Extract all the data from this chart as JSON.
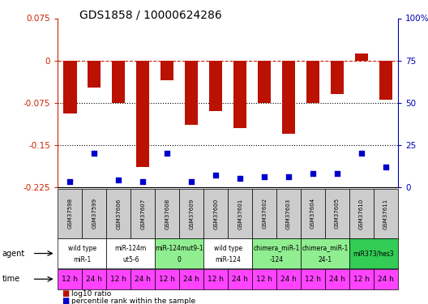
{
  "title": "GDS1858 / 10000624286",
  "samples": [
    "GSM37598",
    "GSM37599",
    "GSM37606",
    "GSM37607",
    "GSM37608",
    "GSM37609",
    "GSM37600",
    "GSM37601",
    "GSM37602",
    "GSM37603",
    "GSM37604",
    "GSM37605",
    "GSM37610",
    "GSM37611"
  ],
  "log10_ratio": [
    -0.095,
    -0.048,
    -0.075,
    -0.19,
    -0.035,
    -0.115,
    -0.09,
    -0.12,
    -0.075,
    -0.13,
    -0.075,
    -0.06,
    0.012,
    -0.07
  ],
  "percentile_rank": [
    3,
    20,
    4,
    3,
    20,
    3,
    7,
    5,
    6,
    6,
    8,
    8,
    20,
    12
  ],
  "ylim_left": [
    -0.225,
    0.075
  ],
  "ylim_right": [
    0,
    100
  ],
  "yticks_left": [
    0.075,
    0,
    -0.075,
    -0.15,
    -0.225
  ],
  "yticks_right": [
    100,
    75,
    50,
    25,
    0
  ],
  "agent_groups": [
    {
      "label": "wild type\nmiR-1",
      "start": 0,
      "end": 2,
      "color": "#ffffff"
    },
    {
      "label": "miR-124m\nut5-6",
      "start": 2,
      "end": 4,
      "color": "#ffffff"
    },
    {
      "label": "miR-124mut9-1\n0",
      "start": 4,
      "end": 6,
      "color": "#90ee90"
    },
    {
      "label": "wild type\nmiR-124",
      "start": 6,
      "end": 8,
      "color": "#ffffff"
    },
    {
      "label": "chimera_miR-1\n-124",
      "start": 8,
      "end": 10,
      "color": "#90ee90"
    },
    {
      "label": "chimera_miR-1\n24-1",
      "start": 10,
      "end": 12,
      "color": "#90ee90"
    },
    {
      "label": "miR373/hes3",
      "start": 12,
      "end": 14,
      "color": "#33cc55"
    }
  ],
  "time_labels": [
    "12 h",
    "24 h",
    "12 h",
    "24 h",
    "12 h",
    "24 h",
    "12 h",
    "24 h",
    "12 h",
    "24 h",
    "12 h",
    "24 h",
    "12 h",
    "24 h"
  ],
  "bar_color": "#bb1100",
  "dot_color": "#0000cc",
  "bg_color": "#ffffff",
  "axis_color_left": "#cc2200",
  "axis_color_right": "#0000bb",
  "grid_color": "#000000",
  "ref_line_color": "#cc2200",
  "sample_bg_color": "#cccccc",
  "time_bg_color": "#ff44ff",
  "agent_label_color": "#000000",
  "chart_bg": "#ffffff"
}
